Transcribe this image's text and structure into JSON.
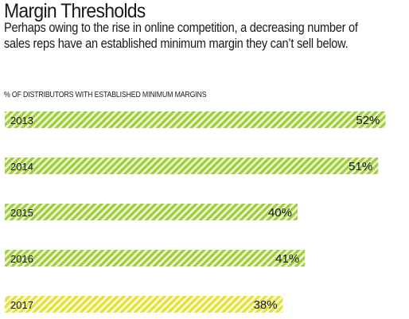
{
  "header": {
    "title": "Margin Thresholds",
    "subtitle_line1": "Perhaps owing to the rise in online competition, a decreasing number of",
    "subtitle_line2": "sales reps have an established minimum margin they can’t sell below."
  },
  "colors": {
    "stripe_dark_green": "#9fcc3b",
    "stripe_light_green": "#eef6d2",
    "stripe_dark_yellow": "#e2e13a",
    "stripe_light_yellow": "#fbfbd8"
  },
  "chart_data": {
    "type": "bar",
    "orientation": "horizontal",
    "xlabel": "% OF DISTRIBUTORS WITH ESTABLISHED MINIMUM MARGINS",
    "categories": [
      "2013",
      "2014",
      "2015",
      "2016",
      "2017"
    ],
    "values": [
      52,
      51,
      40,
      41,
      38
    ],
    "value_labels": [
      "52%",
      "51%",
      "40%",
      "41%",
      "38%"
    ],
    "grid": false,
    "legend": "none"
  }
}
